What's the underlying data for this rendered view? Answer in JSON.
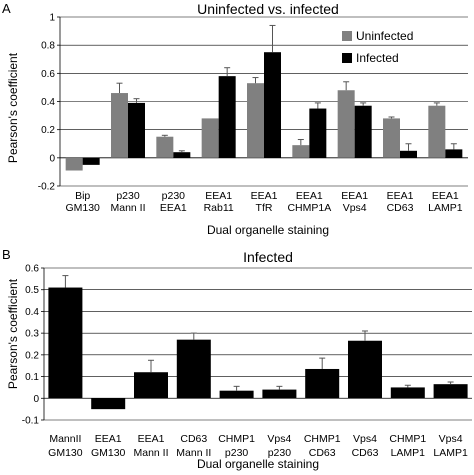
{
  "chart_data": [
    {
      "type": "bar",
      "panel": "A",
      "title": "Uninfected vs. infected",
      "xlabel": "Dual organelle staining",
      "ylabel": "Pearson's coefficient",
      "ylim": [
        -0.2,
        1
      ],
      "yticks": [
        -0.2,
        0,
        0.2,
        0.4,
        0.6,
        0.8,
        1
      ],
      "ytick_labels": [
        "-0.2",
        "0",
        "0.2",
        "0.4",
        "0.6",
        "0.8",
        "1"
      ],
      "categories": [
        [
          "Bip",
          "GM130"
        ],
        [
          "p230",
          "Mann II"
        ],
        [
          "p230",
          "EEA1"
        ],
        [
          "EEA1",
          "Rab11"
        ],
        [
          "EEA1",
          "TfR"
        ],
        [
          "EEA1",
          "CHMP1A"
        ],
        [
          "EEA1",
          "Vps4"
        ],
        [
          "EEA1",
          "CD63"
        ],
        [
          "EEA1",
          "LAMP1"
        ]
      ],
      "grid": true,
      "legend_position": "top-right",
      "series": [
        {
          "name": "Uninfected",
          "color": "#808080",
          "values": [
            -0.09,
            0.46,
            0.15,
            0.28,
            0.53,
            0.09,
            0.48,
            0.28,
            0.37
          ],
          "errors": [
            0.0,
            0.07,
            0.01,
            0.0,
            0.04,
            0.04,
            0.06,
            0.01,
            0.02
          ]
        },
        {
          "name": "Infected",
          "color": "#000000",
          "values": [
            -0.05,
            0.39,
            0.04,
            0.58,
            0.75,
            0.35,
            0.37,
            0.05,
            0.06
          ],
          "errors": [
            0.0,
            0.03,
            0.01,
            0.06,
            0.19,
            0.04,
            0.02,
            0.05,
            0.04
          ]
        }
      ]
    },
    {
      "type": "bar",
      "panel": "B",
      "title": "Infected",
      "xlabel": "Dual organelle staining",
      "ylabel": "Pearson's coefficient",
      "ylim": [
        -0.1,
        0.6
      ],
      "yticks": [
        -0.1,
        0,
        0.1,
        0.2,
        0.3,
        0.4,
        0.5,
        0.6
      ],
      "ytick_labels": [
        "-0.1",
        "0",
        "0.1",
        "0.2",
        "0.3",
        "0.4",
        "0.5",
        "0.6"
      ],
      "categories": [
        [
          "MannII",
          "GM130"
        ],
        [
          "EEA1",
          "GM130"
        ],
        [
          "EEA1",
          "Mann II"
        ],
        [
          "CD63",
          "Mann II"
        ],
        [
          "CHMP1",
          "p230"
        ],
        [
          "Vps4",
          "p230"
        ],
        [
          "CHMP1",
          "CD63"
        ],
        [
          "Vps4",
          "CD63"
        ],
        [
          "CHMP1",
          "LAMP1"
        ],
        [
          "Vps4",
          "LAMP1"
        ]
      ],
      "grid": true,
      "series": [
        {
          "color": "#000000",
          "values": [
            0.51,
            -0.05,
            0.12,
            0.27,
            0.035,
            0.04,
            0.135,
            0.265,
            0.05,
            0.065
          ],
          "errors": [
            0.055,
            0.0,
            0.055,
            0.03,
            0.02,
            0.015,
            0.05,
            0.045,
            0.01,
            0.01
          ]
        }
      ]
    }
  ]
}
